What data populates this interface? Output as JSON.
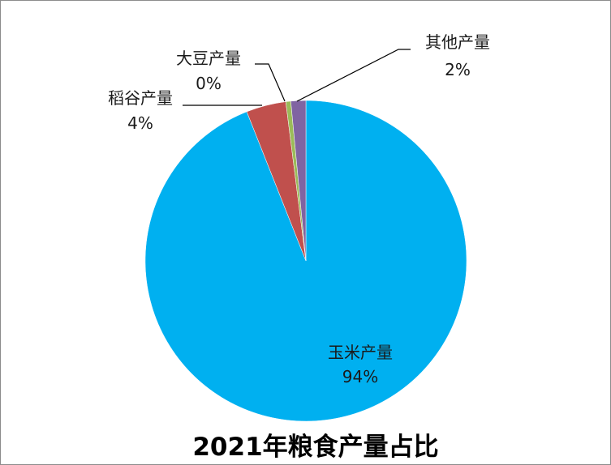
{
  "chart_data": {
    "type": "pie",
    "title": "2021年粮食产量占比",
    "slices": [
      {
        "name": "玉米产量",
        "value": 94,
        "label": "94%",
        "color": "#00b0f0"
      },
      {
        "name": "稻谷产量",
        "value": 4,
        "label": "4%",
        "color": "#c0504d"
      },
      {
        "name": "大豆产量",
        "value": 0.5,
        "label": "0%",
        "color": "#9bbb59"
      },
      {
        "name": "其他产量",
        "value": 1.5,
        "label": "2%",
        "color": "#8064a2"
      }
    ]
  }
}
